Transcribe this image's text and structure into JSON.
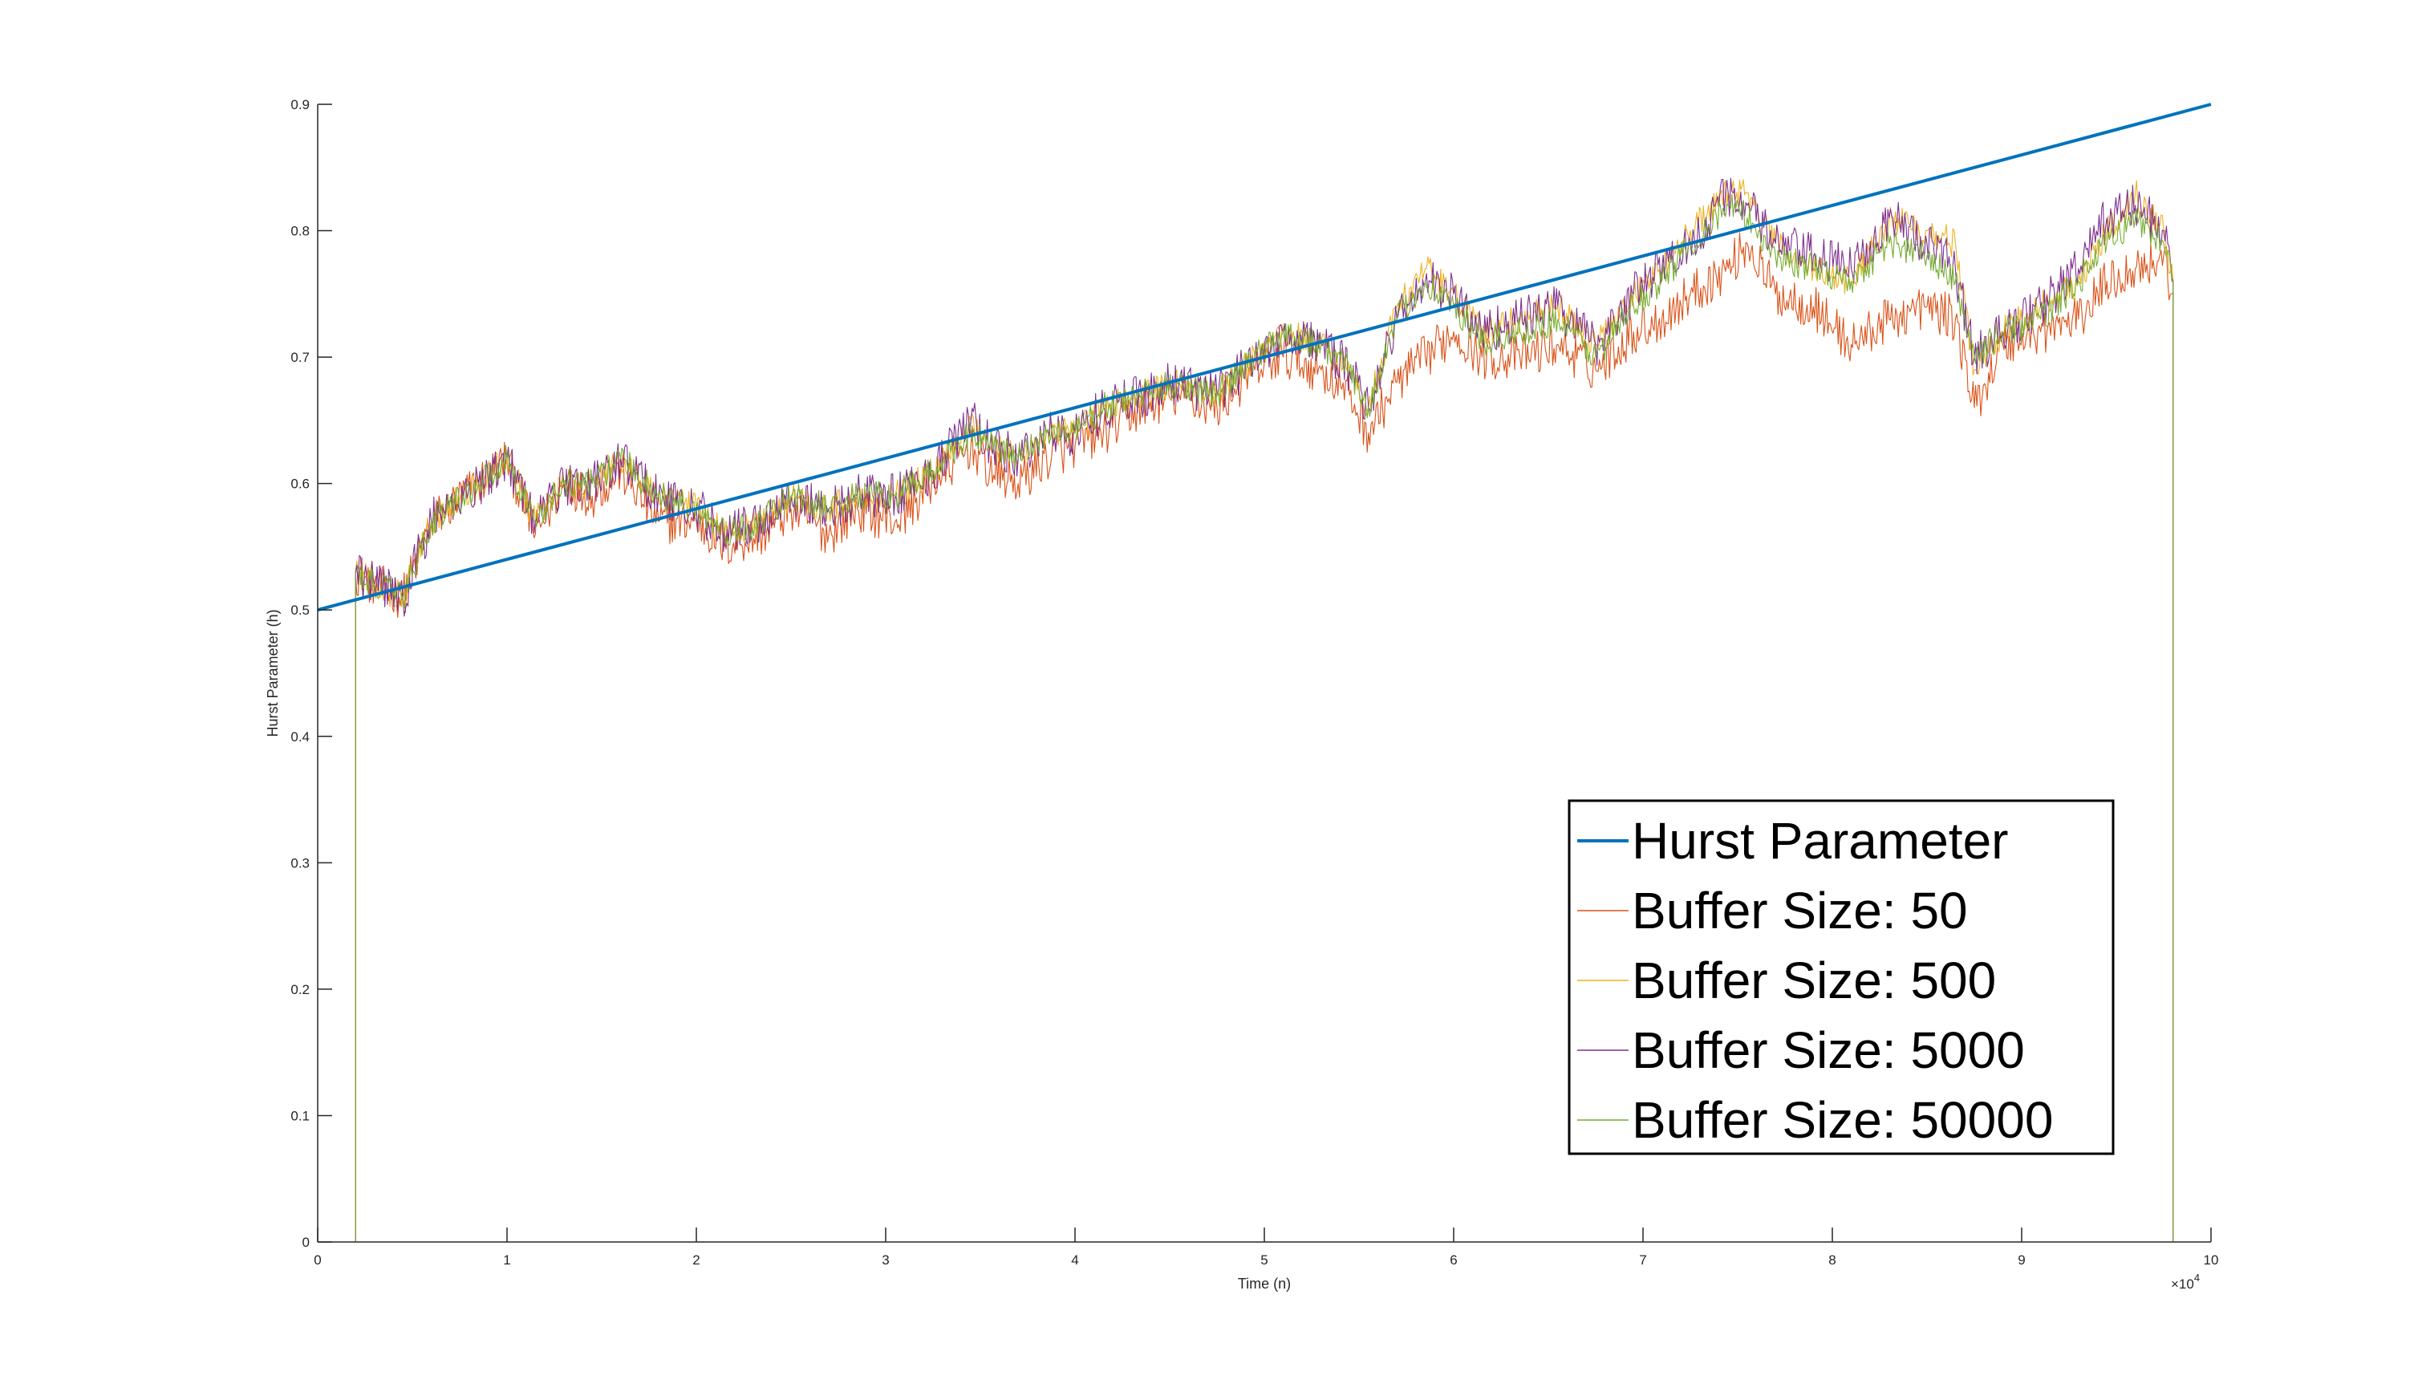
{
  "chart_data": {
    "type": "line",
    "title": "",
    "xlabel": "Time (n)",
    "ylabel": "Hurst Parameter (h)",
    "x_multiplier_label": "×10",
    "x_multiplier_exponent": "4",
    "xlim": [
      0,
      10
    ],
    "ylim": [
      0,
      0.9
    ],
    "x_ticks": [
      0,
      1,
      2,
      3,
      4,
      5,
      6,
      7,
      8,
      9,
      10
    ],
    "x_tick_labels": [
      "0",
      "1",
      "2",
      "3",
      "4",
      "5",
      "6",
      "7",
      "8",
      "9",
      "10"
    ],
    "y_ticks": [
      0,
      0.1,
      0.2,
      0.3,
      0.4,
      0.5,
      0.6,
      0.7,
      0.8,
      0.9
    ],
    "y_tick_labels": [
      "0",
      "0.1",
      "0.2",
      "0.3",
      "0.4",
      "0.5",
      "0.6",
      "0.7",
      "0.8",
      "0.9"
    ],
    "grid": false,
    "legend_position": "bottom-right",
    "series": [
      {
        "name": "Hurst Parameter",
        "color": "#0072BD",
        "x": [
          0,
          10
        ],
        "values": [
          0.5,
          0.9
        ]
      },
      {
        "name": "Buffer Size: 50",
        "color": "#D95319",
        "x": [
          0.2,
          0.2,
          0.3,
          0.45,
          0.6,
          0.85,
          1.0,
          1.15,
          1.3,
          1.45,
          1.6,
          1.8,
          2.0,
          2.15,
          2.35,
          2.5,
          2.7,
          2.85,
          3.05,
          3.25,
          3.45,
          3.55,
          3.7,
          3.85,
          4.0,
          4.15,
          4.35,
          4.55,
          4.75,
          4.95,
          5.1,
          5.3,
          5.45,
          5.55,
          5.7,
          5.85,
          6.0,
          6.15,
          6.35,
          6.55,
          6.75,
          6.95,
          7.1,
          7.25,
          7.45,
          7.55,
          7.7,
          7.9,
          8.1,
          8.3,
          8.5,
          8.65,
          8.75,
          8.9,
          9.1,
          9.3,
          9.45,
          9.6,
          9.75,
          9.8,
          9.8
        ],
        "values": [
          0,
          0.53,
          0.52,
          0.51,
          0.57,
          0.6,
          0.62,
          0.56,
          0.6,
          0.59,
          0.61,
          0.57,
          0.57,
          0.55,
          0.56,
          0.58,
          0.56,
          0.58,
          0.57,
          0.6,
          0.63,
          0.61,
          0.6,
          0.62,
          0.63,
          0.64,
          0.66,
          0.67,
          0.66,
          0.69,
          0.7,
          0.69,
          0.67,
          0.64,
          0.68,
          0.7,
          0.72,
          0.7,
          0.7,
          0.71,
          0.69,
          0.72,
          0.73,
          0.75,
          0.77,
          0.79,
          0.75,
          0.74,
          0.71,
          0.73,
          0.74,
          0.73,
          0.66,
          0.71,
          0.72,
          0.73,
          0.76,
          0.77,
          0.78,
          0.75,
          0
        ]
      },
      {
        "name": "Buffer Size: 500",
        "color": "#EDB120",
        "x": [
          0.2,
          0.2,
          0.3,
          0.45,
          0.6,
          0.85,
          1.0,
          1.15,
          1.3,
          1.45,
          1.6,
          1.8,
          2.0,
          2.15,
          2.35,
          2.5,
          2.7,
          2.85,
          3.05,
          3.25,
          3.45,
          3.55,
          3.7,
          3.85,
          4.0,
          4.15,
          4.35,
          4.55,
          4.75,
          4.95,
          5.1,
          5.3,
          5.45,
          5.55,
          5.7,
          5.85,
          6.0,
          6.15,
          6.35,
          6.55,
          6.75,
          6.95,
          7.1,
          7.25,
          7.45,
          7.55,
          7.7,
          7.9,
          8.1,
          8.3,
          8.5,
          8.65,
          8.75,
          8.9,
          9.1,
          9.3,
          9.45,
          9.6,
          9.75,
          9.8,
          9.8
        ],
        "values": [
          0,
          0.53,
          0.52,
          0.51,
          0.57,
          0.6,
          0.62,
          0.57,
          0.6,
          0.6,
          0.62,
          0.59,
          0.58,
          0.56,
          0.57,
          0.59,
          0.58,
          0.59,
          0.59,
          0.61,
          0.65,
          0.63,
          0.62,
          0.64,
          0.64,
          0.66,
          0.67,
          0.68,
          0.67,
          0.7,
          0.72,
          0.71,
          0.69,
          0.66,
          0.74,
          0.77,
          0.75,
          0.72,
          0.73,
          0.74,
          0.71,
          0.75,
          0.77,
          0.8,
          0.83,
          0.83,
          0.79,
          0.77,
          0.76,
          0.81,
          0.8,
          0.79,
          0.69,
          0.72,
          0.74,
          0.76,
          0.8,
          0.83,
          0.8,
          0.76,
          0
        ]
      },
      {
        "name": "Buffer Size: 5000",
        "color": "#7E2F8E",
        "x": [
          0.2,
          0.2,
          0.3,
          0.45,
          0.6,
          0.85,
          1.0,
          1.15,
          1.3,
          1.45,
          1.6,
          1.8,
          2.0,
          2.15,
          2.35,
          2.5,
          2.7,
          2.85,
          3.05,
          3.25,
          3.45,
          3.55,
          3.7,
          3.85,
          4.0,
          4.15,
          4.35,
          4.55,
          4.75,
          4.95,
          5.1,
          5.3,
          5.45,
          5.55,
          5.7,
          5.85,
          6.0,
          6.15,
          6.35,
          6.55,
          6.75,
          6.95,
          7.1,
          7.25,
          7.45,
          7.55,
          7.7,
          7.9,
          8.1,
          8.3,
          8.5,
          8.65,
          8.75,
          8.9,
          9.1,
          9.3,
          9.45,
          9.6,
          9.75,
          9.8,
          9.8
        ],
        "values": [
          0,
          0.53,
          0.52,
          0.51,
          0.57,
          0.6,
          0.62,
          0.57,
          0.6,
          0.6,
          0.62,
          0.59,
          0.58,
          0.56,
          0.57,
          0.59,
          0.58,
          0.59,
          0.59,
          0.61,
          0.65,
          0.63,
          0.62,
          0.64,
          0.64,
          0.66,
          0.67,
          0.68,
          0.67,
          0.7,
          0.72,
          0.71,
          0.69,
          0.66,
          0.73,
          0.76,
          0.75,
          0.72,
          0.73,
          0.74,
          0.71,
          0.75,
          0.77,
          0.79,
          0.83,
          0.82,
          0.79,
          0.78,
          0.77,
          0.81,
          0.79,
          0.77,
          0.7,
          0.72,
          0.74,
          0.77,
          0.81,
          0.82,
          0.8,
          0.76,
          0
        ]
      },
      {
        "name": "Buffer Size: 50000",
        "color": "#77AC30",
        "x": [
          0.2,
          0.2,
          0.3,
          0.45,
          0.6,
          0.85,
          1.0,
          1.15,
          1.3,
          1.45,
          1.6,
          1.8,
          2.0,
          2.15,
          2.35,
          2.5,
          2.7,
          2.85,
          3.05,
          3.25,
          3.45,
          3.55,
          3.7,
          3.85,
          4.0,
          4.15,
          4.35,
          4.55,
          4.75,
          4.95,
          5.1,
          5.3,
          5.45,
          5.55,
          5.7,
          5.85,
          6.0,
          6.15,
          6.35,
          6.55,
          6.75,
          6.95,
          7.1,
          7.25,
          7.45,
          7.55,
          7.7,
          7.9,
          8.1,
          8.3,
          8.5,
          8.65,
          8.75,
          8.9,
          9.1,
          9.3,
          9.45,
          9.6,
          9.75,
          9.8,
          9.8
        ],
        "values": [
          0,
          0.53,
          0.52,
          0.51,
          0.57,
          0.6,
          0.62,
          0.57,
          0.6,
          0.6,
          0.62,
          0.59,
          0.58,
          0.56,
          0.57,
          0.59,
          0.58,
          0.59,
          0.59,
          0.61,
          0.64,
          0.63,
          0.62,
          0.64,
          0.64,
          0.66,
          0.67,
          0.68,
          0.67,
          0.7,
          0.72,
          0.71,
          0.69,
          0.66,
          0.73,
          0.76,
          0.74,
          0.71,
          0.72,
          0.73,
          0.7,
          0.74,
          0.76,
          0.79,
          0.82,
          0.81,
          0.78,
          0.77,
          0.76,
          0.79,
          0.78,
          0.76,
          0.7,
          0.72,
          0.73,
          0.76,
          0.79,
          0.81,
          0.79,
          0.76,
          0
        ]
      }
    ]
  }
}
